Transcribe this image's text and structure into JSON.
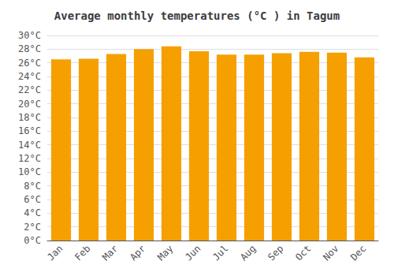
{
  "chart_data": {
    "type": "bar",
    "title": "Average monthly temperatures (°C ) in Tagum",
    "categories": [
      "Jan",
      "Feb",
      "Mar",
      "Apr",
      "May",
      "Jun",
      "Jul",
      "Aug",
      "Sep",
      "Oct",
      "Nov",
      "Dec"
    ],
    "values": [
      26.5,
      26.6,
      27.3,
      28.0,
      28.4,
      27.7,
      27.2,
      27.2,
      27.4,
      27.6,
      27.5,
      26.8
    ],
    "color": "#F5A000",
    "ylim": [
      0,
      30
    ],
    "yticks": [
      {
        "value": 0,
        "label": "0°C"
      },
      {
        "value": 2,
        "label": "2°C"
      },
      {
        "value": 4,
        "label": "4°C"
      },
      {
        "value": 6,
        "label": "6°C"
      },
      {
        "value": 8,
        "label": "8°C"
      },
      {
        "value": 10,
        "label": "10°C"
      },
      {
        "value": 12,
        "label": "12°C"
      },
      {
        "value": 14,
        "label": "14°C"
      },
      {
        "value": 16,
        "label": "16°C"
      },
      {
        "value": 18,
        "label": "18°C"
      },
      {
        "value": 20,
        "label": "20°C"
      },
      {
        "value": 22,
        "label": "22°C"
      },
      {
        "value": 24,
        "label": "24°C"
      },
      {
        "value": 26,
        "label": "26°C"
      },
      {
        "value": 28,
        "label": "28°C"
      },
      {
        "value": 30,
        "label": "30°C"
      }
    ],
    "grid": true
  }
}
